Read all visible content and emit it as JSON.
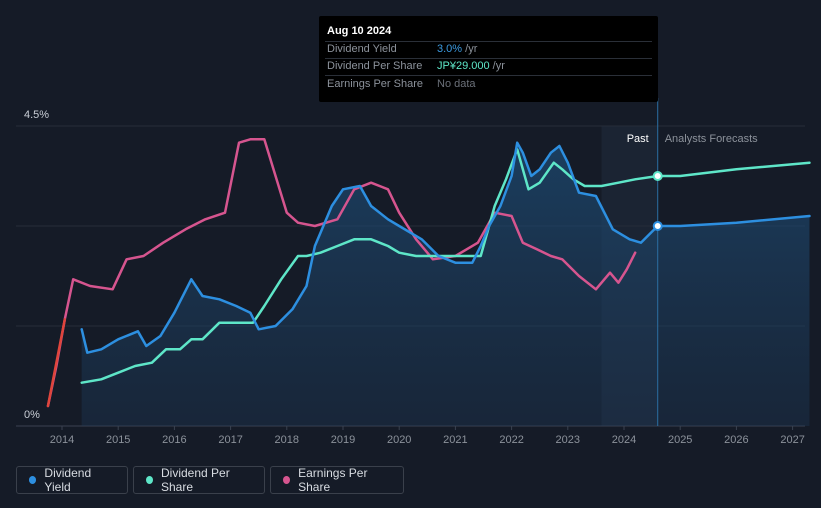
{
  "tooltip": {
    "date": "Aug 10 2024",
    "rows": [
      {
        "label": "Dividend Yield",
        "value": "3.0%",
        "unit": " /yr",
        "color": "#3b9ae1"
      },
      {
        "label": "Dividend Per Share",
        "value": "JP¥29.000",
        "unit": " /yr",
        "color": "#5ee6c8"
      },
      {
        "label": "Earnings Per Share",
        "value": "No data",
        "unit": "",
        "color": "#6b7079"
      }
    ]
  },
  "labels": {
    "past": "Past",
    "forecast": "Analysts Forecasts"
  },
  "legend": [
    {
      "label": "Dividend Yield",
      "color": "#2d8fe0"
    },
    {
      "label": "Dividend Per Share",
      "color": "#5ee6c8"
    },
    {
      "label": "Earnings Per Share",
      "color": "#d6558f"
    }
  ],
  "chart_data": {
    "type": "line",
    "x_ticks": [
      "2014",
      "2015",
      "2016",
      "2017",
      "2018",
      "2019",
      "2020",
      "2021",
      "2022",
      "2023",
      "2024",
      "2025",
      "2026",
      "2027"
    ],
    "y_tick_labels": [
      "4.5%",
      "0%"
    ],
    "ylim": [
      0,
      4.5
    ],
    "xlim": [
      2013.6,
      2027.3
    ],
    "past_end": 2024.6,
    "series": [
      {
        "name": "Dividend Yield",
        "color": "#2d8fe0",
        "x": [
          2014.35,
          2014.45,
          2014.7,
          2015.0,
          2015.35,
          2015.5,
          2015.75,
          2016.0,
          2016.3,
          2016.5,
          2016.8,
          2017.1,
          2017.35,
          2017.5,
          2017.8,
          2018.1,
          2018.35,
          2018.5,
          2018.8,
          2019.0,
          2019.3,
          2019.5,
          2019.8,
          2020.0,
          2020.4,
          2020.7,
          2021.0,
          2021.3,
          2021.45,
          2021.6,
          2021.8,
          2022.0,
          2022.1,
          2022.2,
          2022.35,
          2022.5,
          2022.7,
          2022.85,
          2023.0,
          2023.2,
          2023.5,
          2023.8,
          2024.1,
          2024.3,
          2024.6,
          2025.0,
          2026.0,
          2027.3
        ],
        "values": [
          1.45,
          1.1,
          1.15,
          1.3,
          1.42,
          1.2,
          1.35,
          1.7,
          2.2,
          1.95,
          1.9,
          1.8,
          1.7,
          1.45,
          1.5,
          1.75,
          2.1,
          2.7,
          3.3,
          3.55,
          3.6,
          3.3,
          3.1,
          3.0,
          2.8,
          2.55,
          2.45,
          2.45,
          2.7,
          3.0,
          3.3,
          3.75,
          4.25,
          4.1,
          3.75,
          3.85,
          4.1,
          4.2,
          3.95,
          3.5,
          3.45,
          2.95,
          2.8,
          2.75,
          3.0,
          3.0,
          3.05,
          3.15
        ]
      },
      {
        "name": "Dividend Per Share",
        "color": "#5ee6c8",
        "x": [
          2014.35,
          2014.7,
          2015.0,
          2015.3,
          2015.6,
          2015.85,
          2016.1,
          2016.3,
          2016.5,
          2016.8,
          2017.1,
          2017.4,
          2017.6,
          2017.9,
          2018.2,
          2018.35,
          2018.6,
          2018.9,
          2019.2,
          2019.5,
          2019.8,
          2020.0,
          2020.3,
          2020.6,
          2021.0,
          2021.3,
          2021.45,
          2021.7,
          2021.9,
          2022.1,
          2022.3,
          2022.5,
          2022.75,
          2022.9,
          2023.1,
          2023.3,
          2023.6,
          2023.9,
          2024.2,
          2024.6,
          2025.0,
          2026.0,
          2027.3
        ],
        "values": [
          0.65,
          0.7,
          0.8,
          0.9,
          0.95,
          1.15,
          1.15,
          1.3,
          1.3,
          1.55,
          1.55,
          1.55,
          1.8,
          2.2,
          2.55,
          2.55,
          2.6,
          2.7,
          2.8,
          2.8,
          2.7,
          2.6,
          2.55,
          2.55,
          2.55,
          2.55,
          2.55,
          3.3,
          3.7,
          4.15,
          3.55,
          3.65,
          3.95,
          3.85,
          3.7,
          3.6,
          3.6,
          3.65,
          3.7,
          3.75,
          3.75,
          3.85,
          3.95
        ]
      },
      {
        "name": "Earnings Per Share",
        "color": "#d6558f",
        "x": [
          2013.75,
          2013.9,
          2014.05,
          2014.2,
          2014.5,
          2014.9,
          2015.15,
          2015.45,
          2015.8,
          2016.2,
          2016.55,
          2016.9,
          2017.15,
          2017.35,
          2017.6,
          2018.0,
          2018.2,
          2018.5,
          2018.9,
          2019.2,
          2019.5,
          2019.8,
          2020.0,
          2020.3,
          2020.6,
          2021.0,
          2021.4,
          2021.7,
          2022.0,
          2022.2,
          2022.45,
          2022.7,
          2022.9,
          2023.2,
          2023.5,
          2023.75,
          2023.9,
          2024.05,
          2024.2
        ],
        "values": [
          0.3,
          0.9,
          1.6,
          2.2,
          2.1,
          2.05,
          2.5,
          2.55,
          2.75,
          2.95,
          3.1,
          3.2,
          4.25,
          4.3,
          4.3,
          3.2,
          3.05,
          3.0,
          3.1,
          3.55,
          3.65,
          3.55,
          3.2,
          2.8,
          2.5,
          2.55,
          2.75,
          3.2,
          3.15,
          2.75,
          2.65,
          2.55,
          2.5,
          2.25,
          2.05,
          2.3,
          2.15,
          2.35,
          2.6
        ]
      }
    ]
  }
}
